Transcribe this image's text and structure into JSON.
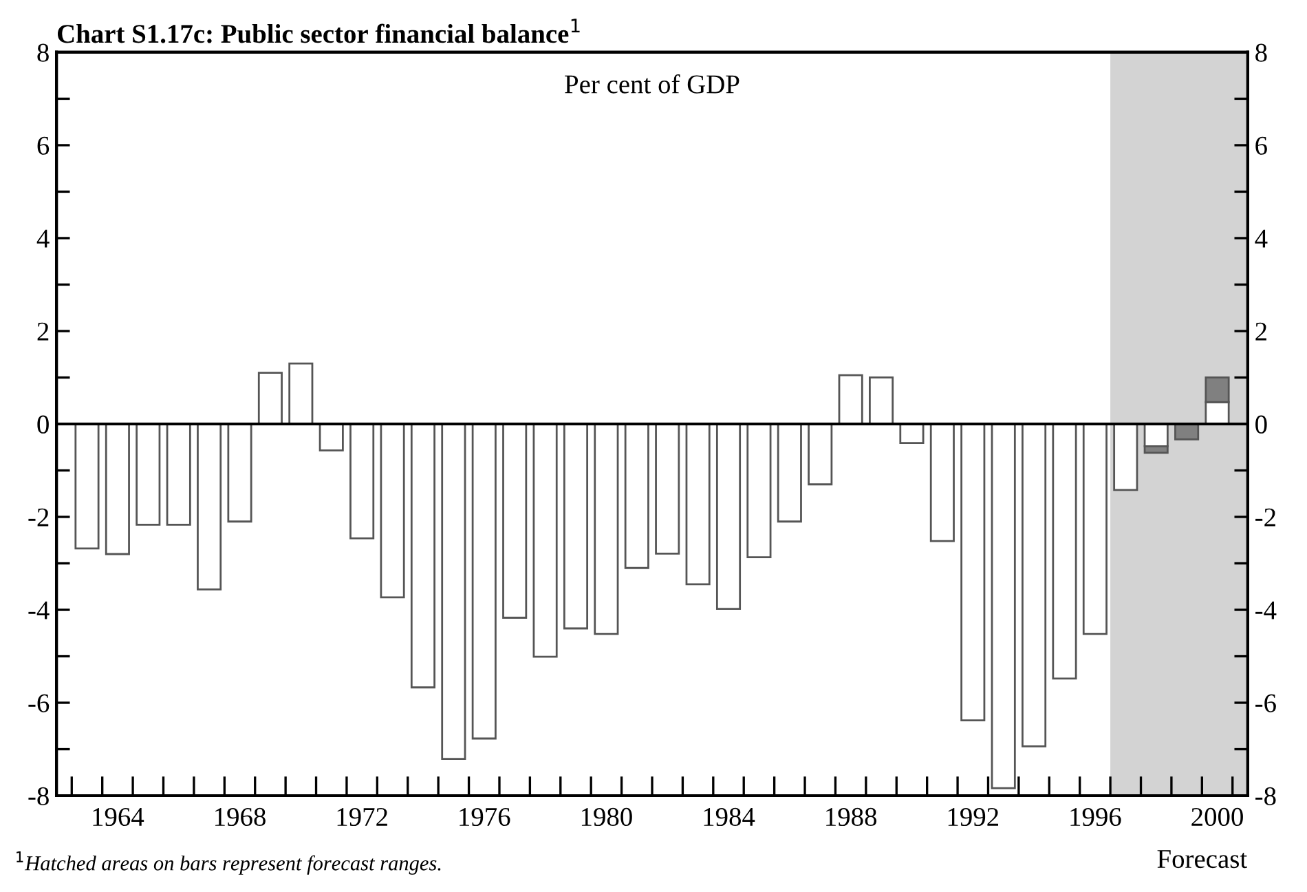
{
  "chart_data": {
    "type": "bar",
    "title": "Chart S1.17c: Public sector financial balance$^{1}$",
    "x": [
      1963,
      1964,
      1965,
      1966,
      1967,
      1968,
      1969,
      1970,
      1971,
      1972,
      1973,
      1974,
      1975,
      1976,
      1977,
      1978,
      1979,
      1980,
      1981,
      1982,
      1983,
      1984,
      1985,
      1986,
      1987,
      1988,
      1989,
      1990,
      1991,
      1992,
      1993,
      1994,
      1995,
      1996,
      1997,
      1998,
      1999,
      2000
    ],
    "stacked": true,
    "series": [
      {
        "color": "#ffffff",
        "values": [
          -2.68,
          -2.8,
          -2.17,
          -2.17,
          -3.56,
          -2.1,
          1.1,
          1.3,
          -0.57,
          -2.46,
          -3.73,
          -5.67,
          -7.21,
          -6.77,
          -4.17,
          -5.01,
          -4.4,
          -4.52,
          -3.1,
          -2.79,
          -3.45,
          -3.98,
          -2.87,
          -2.1,
          -1.3,
          1.05,
          1.0,
          -0.41,
          -2.52,
          -6.38,
          -7.84,
          -6.94,
          -5.48,
          -4.52,
          -1.42,
          -0.48,
          null,
          0.47
        ]
      },
      {
        "color": "#808080",
        "values": [
          null,
          null,
          null,
          null,
          null,
          null,
          null,
          null,
          null,
          null,
          null,
          null,
          null,
          null,
          null,
          null,
          null,
          null,
          null,
          null,
          null,
          null,
          null,
          null,
          null,
          null,
          null,
          null,
          null,
          null,
          null,
          null,
          null,
          null,
          null,
          -0.14,
          -0.33,
          0.53
        ]
      }
    ],
    "xlim": [
      1962,
      2001
    ],
    "xticks": [
      {
        "value": 1962.5,
        "label": null
      },
      {
        "value": 1963.5,
        "label": null
      },
      {
        "value": 1964,
        "label": "1964"
      },
      {
        "value": 1964.5,
        "label": null
      },
      {
        "value": 1965.5,
        "label": null
      },
      {
        "value": 1966.5,
        "label": null
      },
      {
        "value": 1967.5,
        "label": null
      },
      {
        "value": 1968,
        "label": "1968"
      },
      {
        "value": 1968.5,
        "label": null
      },
      {
        "value": 1969.5,
        "label": null
      },
      {
        "value": 1970.5,
        "label": null
      },
      {
        "value": 1971.5,
        "label": null
      },
      {
        "value": 1972,
        "label": "1972"
      },
      {
        "value": 1972.5,
        "label": null
      },
      {
        "value": 1973.5,
        "label": null
      },
      {
        "value": 1974.5,
        "label": null
      },
      {
        "value": 1975.5,
        "label": null
      },
      {
        "value": 1976,
        "label": "1976"
      },
      {
        "value": 1976.5,
        "label": null
      },
      {
        "value": 1977.5,
        "label": null
      },
      {
        "value": 1978.5,
        "label": null
      },
      {
        "value": 1979.5,
        "label": null
      },
      {
        "value": 1980,
        "label": "1980"
      },
      {
        "value": 1980.5,
        "label": null
      },
      {
        "value": 1981.5,
        "label": null
      },
      {
        "value": 1982.5,
        "label": null
      },
      {
        "value": 1983.5,
        "label": null
      },
      {
        "value": 1984,
        "label": "1984"
      },
      {
        "value": 1984.5,
        "label": null
      },
      {
        "value": 1985.5,
        "label": null
      },
      {
        "value": 1986.5,
        "label": null
      },
      {
        "value": 1987.5,
        "label": null
      },
      {
        "value": 1988,
        "label": "1988"
      },
      {
        "value": 1988.5,
        "label": null
      },
      {
        "value": 1989.5,
        "label": null
      },
      {
        "value": 1990.5,
        "label": null
      },
      {
        "value": 1991.5,
        "label": null
      },
      {
        "value": 1992,
        "label": "1992"
      },
      {
        "value": 1992.5,
        "label": null
      },
      {
        "value": 1993.5,
        "label": null
      },
      {
        "value": 1994.5,
        "label": null
      },
      {
        "value": 1995.5,
        "label": null
      },
      {
        "value": 1996,
        "label": "1996"
      },
      {
        "value": 1996.5,
        "label": null
      },
      {
        "value": 1997.5,
        "label": null
      },
      {
        "value": 1998.5,
        "label": null
      },
      {
        "value": 1999.5,
        "label": null
      },
      {
        "value": 2000,
        "label": "2000"
      },
      {
        "value": 2000.5,
        "label": null
      }
    ],
    "ylim": [
      -8,
      8
    ],
    "yticks": [
      -8,
      {
        "value": -7,
        "label": null
      },
      -6,
      {
        "value": -5,
        "label": null
      },
      -4,
      {
        "value": -3,
        "label": null
      },
      -2,
      {
        "value": -1,
        "label": null
      },
      0,
      {
        "value": 1,
        "label": null
      },
      2,
      {
        "value": 3,
        "label": null
      },
      4,
      {
        "value": 5,
        "label": null
      },
      6,
      {
        "value": 7,
        "label": null
      },
      8
    ],
    "y2lim": [
      -8,
      8
    ],
    "y2ticks": [
      -8,
      {
        "value": -7,
        "label": null
      },
      -6,
      {
        "value": -5,
        "label": null
      },
      -4,
      {
        "value": -3,
        "label": null
      },
      -2,
      {
        "value": -1,
        "label": null
      },
      0,
      {
        "value": 1,
        "label": null
      },
      2,
      {
        "value": 3,
        "label": null
      },
      4,
      {
        "value": 5,
        "label": null
      },
      6,
      {
        "value": 7,
        "label": null
      },
      8
    ],
    "ref_lines": [
      {
        "axis": "y",
        "value": 0,
        "color": "#000000"
      }
    ],
    "bands": [
      {
        "axis": "x",
        "from": 1996.5,
        "to": 2001,
        "label": "Forecast",
        "color": "#d3d3d3"
      }
    ],
    "annotations": [
      "Per cent of GDP",
      "$^{1}$Hatched areas on bars represent forecast ranges."
    ],
    "grid": false,
    "legend": false
  }
}
